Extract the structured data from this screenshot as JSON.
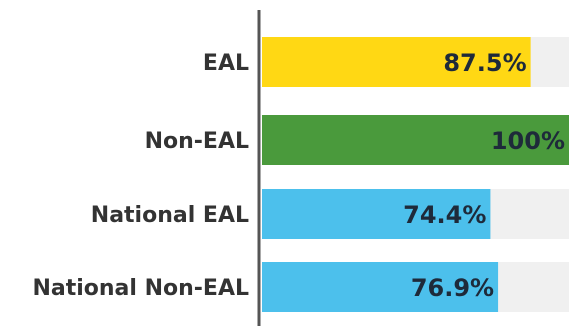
{
  "chart_data": {
    "type": "bar",
    "orientation": "horizontal",
    "categories": [
      "EAL",
      "Non-EAL",
      "National EAL",
      "National Non-EAL"
    ],
    "values": [
      87.5,
      100,
      74.4,
      76.9
    ],
    "value_labels": [
      "87.5%",
      "100%",
      "74.4%",
      "76.9%"
    ],
    "bar_colors": [
      "#ffd814",
      "#4a9a3c",
      "#4cc0ec",
      "#4cc0ec"
    ],
    "track_color": "#f0f0f0",
    "xlim": [
      0,
      100
    ],
    "title": "",
    "xlabel": "",
    "ylabel": "",
    "grid": false,
    "legend": "none"
  }
}
